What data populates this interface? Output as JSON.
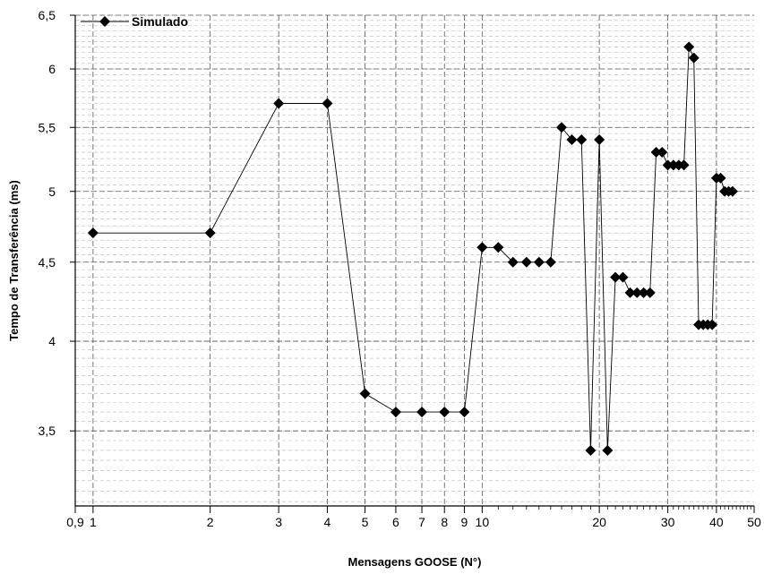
{
  "chart_data": {
    "type": "line",
    "xlabel": "Mensagens GOOSE (N°)",
    "ylabel": "Tempo de Transferência (ms)",
    "x_scale": "log",
    "y_scale": "log",
    "xlim": [
      0.9,
      50
    ],
    "ylim": [
      3.13,
      6.5
    ],
    "grid": true,
    "legend_position": "top-left",
    "x_ticks": [
      {
        "value": 0.9,
        "label": "0,9"
      },
      {
        "value": 1,
        "label": "1"
      },
      {
        "value": 2,
        "label": "2"
      },
      {
        "value": 3,
        "label": "3"
      },
      {
        "value": 4,
        "label": "4"
      },
      {
        "value": 5,
        "label": "5"
      },
      {
        "value": 6,
        "label": "6"
      },
      {
        "value": 7,
        "label": "7"
      },
      {
        "value": 8,
        "label": "8"
      },
      {
        "value": 9,
        "label": "9"
      },
      {
        "value": 10,
        "label": "10"
      },
      {
        "value": 20,
        "label": "20"
      },
      {
        "value": 30,
        "label": "30"
      },
      {
        "value": 40,
        "label": "40"
      },
      {
        "value": 50,
        "label": "50"
      }
    ],
    "y_ticks": [
      {
        "value": 3.5,
        "label": "3,5"
      },
      {
        "value": 4,
        "label": "4"
      },
      {
        "value": 4.5,
        "label": "4,5"
      },
      {
        "value": 5,
        "label": "5"
      },
      {
        "value": 5.5,
        "label": "5,5"
      },
      {
        "value": 6,
        "label": "6"
      },
      {
        "value": 6.5,
        "label": "6,5"
      }
    ],
    "series": [
      {
        "name": "Simulado",
        "color": "#000000",
        "x": [
          1,
          2,
          3,
          4,
          5,
          6,
          7,
          8,
          9,
          10,
          11,
          12,
          13,
          14,
          15,
          16,
          17,
          18,
          19,
          20,
          21,
          22,
          23,
          24,
          25,
          26,
          27,
          28,
          29,
          30,
          31,
          32,
          33,
          34,
          35,
          36,
          37,
          38,
          39,
          40,
          41,
          42,
          43,
          44
        ],
        "y": [
          4.7,
          4.7,
          5.7,
          5.7,
          3.7,
          3.6,
          3.6,
          3.6,
          3.6,
          4.6,
          4.6,
          4.5,
          4.5,
          4.5,
          4.5,
          5.5,
          5.4,
          5.4,
          3.4,
          5.4,
          3.4,
          4.4,
          4.4,
          4.3,
          4.3,
          4.3,
          4.3,
          5.3,
          5.3,
          5.2,
          5.2,
          5.2,
          5.2,
          6.2,
          6.1,
          4.1,
          4.1,
          4.1,
          4.1,
          5.1,
          5.1,
          5.0,
          5.0,
          5.0
        ]
      }
    ]
  }
}
